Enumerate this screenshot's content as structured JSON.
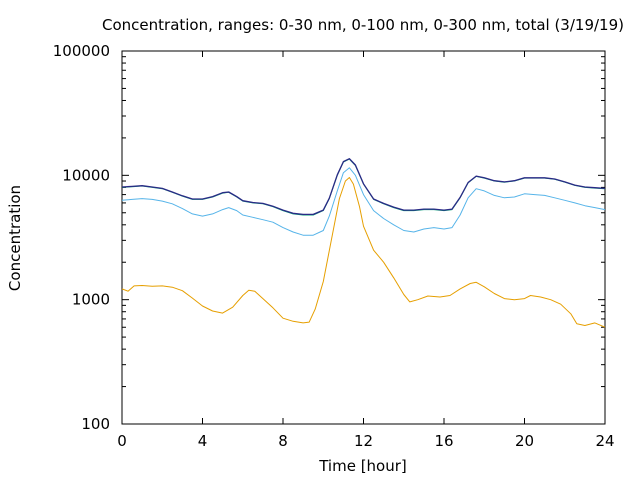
{
  "chart_data": {
    "type": "line",
    "title": "Concentration, ranges: 0-30 nm, 0-100 nm, 0-300 nm, total (3/19/19)",
    "xlabel": "Time [hour]",
    "ylabel": "Concentration",
    "xlim": [
      0,
      24
    ],
    "ylim": [
      100,
      100000
    ],
    "yscale": "log",
    "grid": false,
    "x_ticks": [
      "0",
      "4",
      "8",
      "12",
      "16",
      "20",
      "24"
    ],
    "y_ticks": [
      "100",
      "1000",
      "10000",
      "100000"
    ],
    "series": [
      {
        "color": "#e69f00",
        "points": [
          [
            0,
            1220
          ],
          [
            0.3,
            1170
          ],
          [
            0.6,
            1290
          ],
          [
            1,
            1300
          ],
          [
            1.5,
            1280
          ],
          [
            2,
            1290
          ],
          [
            2.5,
            1260
          ],
          [
            3,
            1180
          ],
          [
            3.5,
            1030
          ],
          [
            4,
            890
          ],
          [
            4.5,
            810
          ],
          [
            5,
            780
          ],
          [
            5.5,
            870
          ],
          [
            6,
            1080
          ],
          [
            6.3,
            1190
          ],
          [
            6.6,
            1170
          ],
          [
            7,
            1020
          ],
          [
            7.5,
            860
          ],
          [
            8,
            710
          ],
          [
            8.5,
            670
          ],
          [
            9,
            650
          ],
          [
            9.3,
            660
          ],
          [
            9.6,
            840
          ],
          [
            10,
            1400
          ],
          [
            10.4,
            3000
          ],
          [
            10.8,
            6500
          ],
          [
            11.1,
            9000
          ],
          [
            11.3,
            9600
          ],
          [
            11.5,
            8500
          ],
          [
            11.8,
            5600
          ],
          [
            12,
            3900
          ],
          [
            12.5,
            2500
          ],
          [
            13,
            2000
          ],
          [
            13.5,
            1500
          ],
          [
            14,
            1100
          ],
          [
            14.3,
            960
          ],
          [
            14.7,
            1000
          ],
          [
            15.2,
            1070
          ],
          [
            15.8,
            1050
          ],
          [
            16.3,
            1080
          ],
          [
            16.8,
            1220
          ],
          [
            17.3,
            1350
          ],
          [
            17.6,
            1380
          ],
          [
            18,
            1270
          ],
          [
            18.5,
            1120
          ],
          [
            19,
            1020
          ],
          [
            19.5,
            1000
          ],
          [
            20,
            1020
          ],
          [
            20.3,
            1080
          ],
          [
            20.8,
            1050
          ],
          [
            21.3,
            1000
          ],
          [
            21.8,
            920
          ],
          [
            22.3,
            770
          ],
          [
            22.6,
            640
          ],
          [
            23,
            620
          ],
          [
            23.5,
            650
          ],
          [
            24,
            600
          ]
        ]
      },
      {
        "color": "#56b4e9",
        "points": [
          [
            0,
            6300
          ],
          [
            0.5,
            6400
          ],
          [
            1,
            6500
          ],
          [
            1.5,
            6400
          ],
          [
            2,
            6200
          ],
          [
            2.5,
            5900
          ],
          [
            3,
            5400
          ],
          [
            3.5,
            4900
          ],
          [
            4,
            4700
          ],
          [
            4.5,
            4900
          ],
          [
            5,
            5300
          ],
          [
            5.3,
            5500
          ],
          [
            5.7,
            5200
          ],
          [
            6,
            4800
          ],
          [
            6.5,
            4600
          ],
          [
            7,
            4400
          ],
          [
            7.5,
            4200
          ],
          [
            8,
            3800
          ],
          [
            8.5,
            3500
          ],
          [
            9,
            3300
          ],
          [
            9.5,
            3300
          ],
          [
            10,
            3600
          ],
          [
            10.3,
            4700
          ],
          [
            10.7,
            7500
          ],
          [
            11,
            10500
          ],
          [
            11.3,
            11500
          ],
          [
            11.6,
            10000
          ],
          [
            12,
            7000
          ],
          [
            12.5,
            5200
          ],
          [
            13,
            4500
          ],
          [
            13.5,
            4000
          ],
          [
            14,
            3600
          ],
          [
            14.5,
            3500
          ],
          [
            15,
            3700
          ],
          [
            15.5,
            3800
          ],
          [
            16,
            3700
          ],
          [
            16.4,
            3800
          ],
          [
            16.8,
            4800
          ],
          [
            17.2,
            6600
          ],
          [
            17.6,
            7800
          ],
          [
            18,
            7500
          ],
          [
            18.5,
            6900
          ],
          [
            19,
            6600
          ],
          [
            19.5,
            6700
          ],
          [
            20,
            7100
          ],
          [
            20.5,
            7000
          ],
          [
            21,
            6900
          ],
          [
            21.5,
            6600
          ],
          [
            22,
            6300
          ],
          [
            22.5,
            6000
          ],
          [
            23,
            5700
          ],
          [
            23.5,
            5500
          ],
          [
            24,
            5300
          ]
        ]
      },
      {
        "color": "#009e73",
        "points": [
          [
            0,
            8000
          ],
          [
            0.5,
            8100
          ],
          [
            1,
            8200
          ],
          [
            1.5,
            8000
          ],
          [
            2,
            7800
          ],
          [
            2.5,
            7300
          ],
          [
            3,
            6800
          ],
          [
            3.5,
            6400
          ],
          [
            4,
            6400
          ],
          [
            4.5,
            6700
          ],
          [
            5,
            7200
          ],
          [
            5.3,
            7300
          ],
          [
            5.7,
            6700
          ],
          [
            6,
            6200
          ],
          [
            6.5,
            6000
          ],
          [
            7,
            5900
          ],
          [
            7.5,
            5600
          ],
          [
            8,
            5200
          ],
          [
            8.5,
            4900
          ],
          [
            9,
            4800
          ],
          [
            9.5,
            4800
          ],
          [
            10,
            5200
          ],
          [
            10.3,
            6500
          ],
          [
            10.7,
            10000
          ],
          [
            11,
            12800
          ],
          [
            11.3,
            13500
          ],
          [
            11.6,
            12000
          ],
          [
            12,
            8500
          ],
          [
            12.5,
            6400
          ],
          [
            13,
            5900
          ],
          [
            13.5,
            5500
          ],
          [
            14,
            5200
          ],
          [
            14.5,
            5200
          ],
          [
            15,
            5300
          ],
          [
            15.5,
            5300
          ],
          [
            16,
            5200
          ],
          [
            16.4,
            5300
          ],
          [
            16.8,
            6600
          ],
          [
            17.2,
            8700
          ],
          [
            17.6,
            9800
          ],
          [
            18,
            9500
          ],
          [
            18.5,
            9000
          ],
          [
            19,
            8800
          ],
          [
            19.5,
            9000
          ],
          [
            20,
            9500
          ],
          [
            20.5,
            9500
          ],
          [
            21,
            9500
          ],
          [
            21.5,
            9300
          ],
          [
            22,
            8800
          ],
          [
            22.5,
            8300
          ],
          [
            23,
            8000
          ],
          [
            23.5,
            7900
          ],
          [
            24,
            7800
          ]
        ]
      },
      {
        "color": "#2a2a86",
        "points": [
          [
            0,
            8050
          ],
          [
            0.5,
            8150
          ],
          [
            1,
            8250
          ],
          [
            1.5,
            8050
          ],
          [
            2,
            7850
          ],
          [
            2.5,
            7350
          ],
          [
            3,
            6850
          ],
          [
            3.5,
            6450
          ],
          [
            4,
            6450
          ],
          [
            4.5,
            6750
          ],
          [
            5,
            7250
          ],
          [
            5.3,
            7350
          ],
          [
            5.7,
            6750
          ],
          [
            6,
            6250
          ],
          [
            6.5,
            6050
          ],
          [
            7,
            5950
          ],
          [
            7.5,
            5650
          ],
          [
            8,
            5250
          ],
          [
            8.5,
            4950
          ],
          [
            9,
            4850
          ],
          [
            9.5,
            4850
          ],
          [
            10,
            5250
          ],
          [
            10.3,
            6550
          ],
          [
            10.7,
            10100
          ],
          [
            11,
            12900
          ],
          [
            11.3,
            13600
          ],
          [
            11.6,
            12100
          ],
          [
            12,
            8550
          ],
          [
            12.5,
            6450
          ],
          [
            13,
            5950
          ],
          [
            13.5,
            5550
          ],
          [
            14,
            5250
          ],
          [
            14.5,
            5250
          ],
          [
            15,
            5350
          ],
          [
            15.5,
            5350
          ],
          [
            16,
            5250
          ],
          [
            16.4,
            5350
          ],
          [
            16.8,
            6650
          ],
          [
            17.2,
            8750
          ],
          [
            17.6,
            9850
          ],
          [
            18,
            9550
          ],
          [
            18.5,
            9050
          ],
          [
            19,
            8850
          ],
          [
            19.5,
            9050
          ],
          [
            20,
            9550
          ],
          [
            20.5,
            9550
          ],
          [
            21,
            9550
          ],
          [
            21.5,
            9350
          ],
          [
            22,
            8850
          ],
          [
            22.5,
            8350
          ],
          [
            23,
            8050
          ],
          [
            23.5,
            7950
          ],
          [
            24,
            7850
          ]
        ]
      }
    ]
  }
}
